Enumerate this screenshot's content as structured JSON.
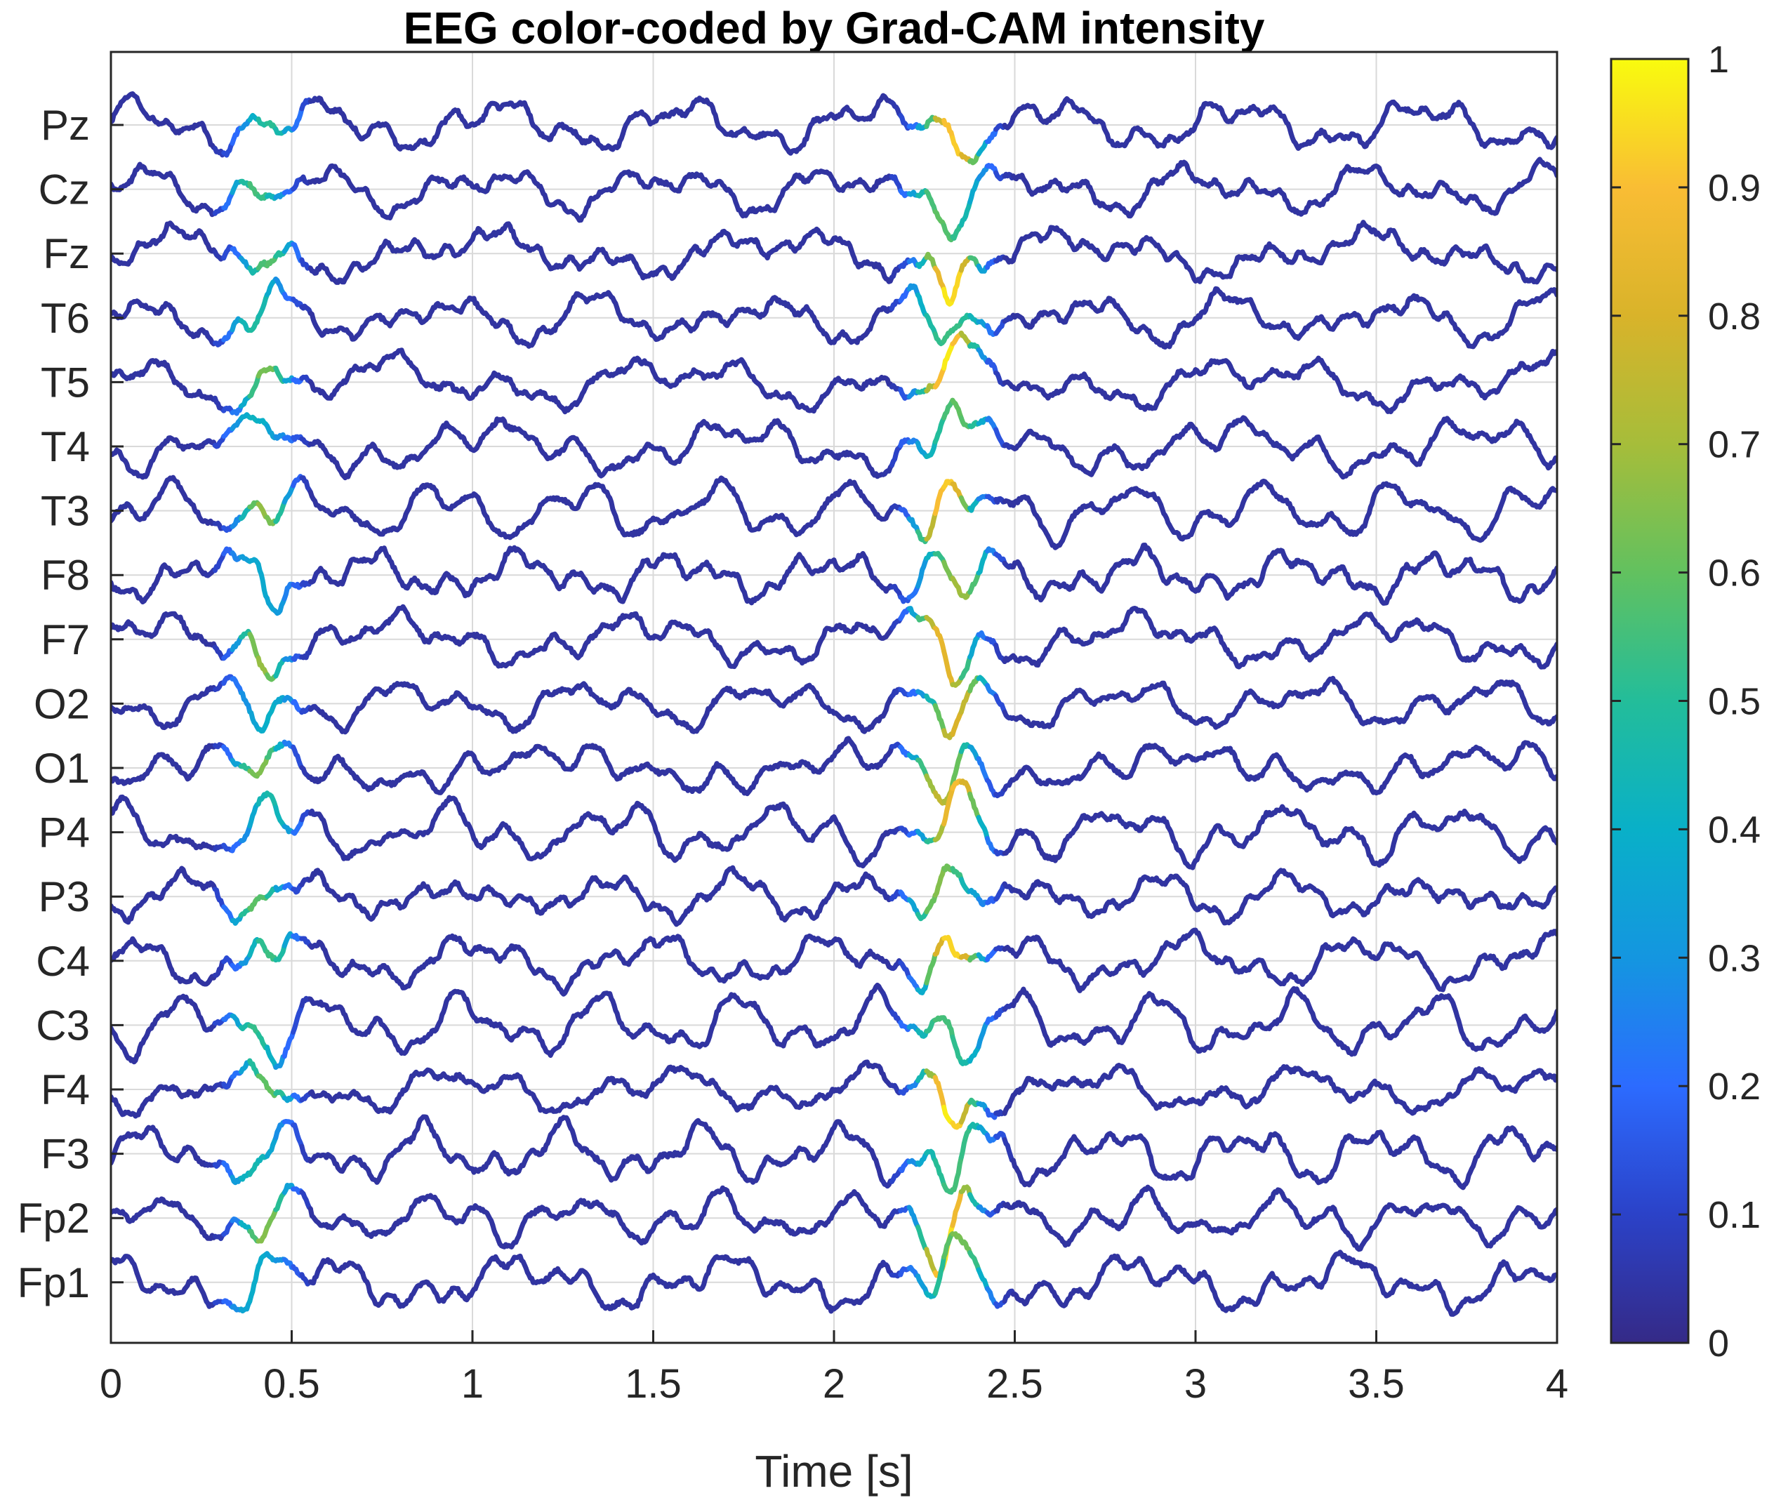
{
  "chart_data": {
    "type": "line",
    "title": "EEG color-coded by Grad-CAM intensity",
    "xlabel": "Time [s]",
    "ylabel": "",
    "xlim": [
      0,
      4
    ],
    "x_ticks": [
      "0",
      "0.5",
      "1",
      "1.5",
      "2",
      "2.5",
      "3",
      "3.5",
      "4"
    ],
    "channels": [
      "Pz",
      "Cz",
      "Fz",
      "T6",
      "T5",
      "T4",
      "T3",
      "F8",
      "F7",
      "O2",
      "O1",
      "P4",
      "P3",
      "C4",
      "C3",
      "F4",
      "F3",
      "Fp2",
      "Fp1"
    ],
    "grid": true,
    "colorbar": {
      "label": "",
      "range": [
        0,
        1
      ],
      "ticks": [
        "0",
        "0.1",
        "0.2",
        "0.3",
        "0.4",
        "0.5",
        "0.6",
        "0.7",
        "0.8",
        "0.9",
        "1"
      ],
      "colormap": "parula",
      "colors": [
        "#352a87",
        "#2b42c8",
        "#2c6bff",
        "#1496e0",
        "#09b0c8",
        "#23bd9a",
        "#62c15f",
        "#a6bd3a",
        "#d9b32a",
        "#f9bd34",
        "#f9fb0e"
      ]
    },
    "intensity_peaks": [
      {
        "time_s": 0.42,
        "intensity": 0.68
      },
      {
        "time_s": 2.32,
        "intensity": 0.98
      }
    ]
  }
}
